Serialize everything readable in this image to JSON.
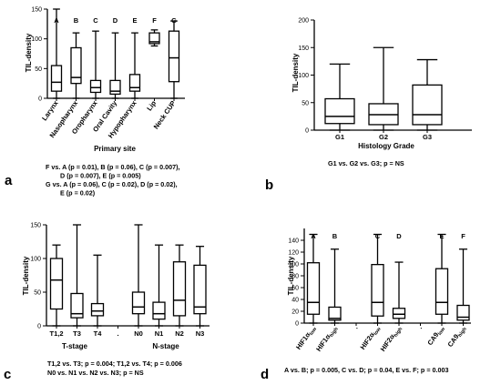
{
  "chart_data": [
    {
      "type": "box",
      "panel_label": "a",
      "ylabel": "TIL-density",
      "xlabel": "Primary site",
      "ylim": [
        0,
        150
      ],
      "yticks": [
        0,
        50,
        100,
        150
      ],
      "categories": [
        "Larynx",
        "Nasopharynx",
        "Oropharynx",
        "Oral Cavity",
        "Hypopharynx",
        "Lip",
        "Neck CUP"
      ],
      "letters": [
        "A",
        "B",
        "C",
        "D",
        "E",
        "F",
        "G"
      ],
      "boxes": [
        {
          "min": 0,
          "q1": 12,
          "median": 27,
          "q3": 55,
          "max": 150
        },
        {
          "min": 0,
          "q1": 25,
          "median": 35,
          "q3": 85,
          "max": 110
        },
        {
          "min": 0,
          "q1": 10,
          "median": 18,
          "q3": 30,
          "max": 113
        },
        {
          "min": 0,
          "q1": 7,
          "median": 12,
          "q3": 30,
          "max": 110
        },
        {
          "min": 0,
          "q1": 12,
          "median": 18,
          "q3": 40,
          "max": 110
        },
        {
          "min": 88,
          "q1": 92,
          "median": 95,
          "q3": 110,
          "max": 115
        },
        {
          "min": 0,
          "q1": 28,
          "median": 68,
          "q3": 113,
          "max": 130
        }
      ],
      "caption": [
        "F vs.  A (p = 0.01), B (p = 0.06), C (p = 0.007),",
        "D (p = 0.007), E (p = 0.005)",
        "G vs.  A (p = 0.06),  C (p = 0.02), D (p = 0.02),",
        "E (p = 0.02)"
      ]
    },
    {
      "type": "box",
      "panel_label": "b",
      "ylabel": "TIL-density",
      "xlabel": "Histology Grade",
      "ylim": [
        0,
        200
      ],
      "yticks": [
        0,
        50,
        100,
        150,
        200
      ],
      "categories": [
        "G1",
        "G2",
        "G3"
      ],
      "boxes": [
        {
          "min": 0,
          "q1": 12,
          "median": 25,
          "q3": 57,
          "max": 120
        },
        {
          "min": 0,
          "q1": 10,
          "median": 28,
          "q3": 48,
          "max": 150
        },
        {
          "min": 0,
          "q1": 10,
          "median": 28,
          "q3": 82,
          "max": 128
        }
      ],
      "caption": [
        "G1 vs. G2 vs. G3; p = NS"
      ]
    },
    {
      "type": "box",
      "panel_label": "c",
      "ylabel": "TIL-density",
      "ylim": [
        0,
        150
      ],
      "yticks": [
        0,
        50,
        100,
        150
      ],
      "categories": [
        "T1,2",
        "T3",
        "T4",
        ".",
        "N0",
        "N1",
        "N2",
        "N3"
      ],
      "groups": [
        "T-stage",
        "N-stage"
      ],
      "boxes": [
        {
          "min": 0,
          "q1": 25,
          "median": 68,
          "q3": 100,
          "max": 120
        },
        {
          "min": 0,
          "q1": 12,
          "median": 18,
          "q3": 48,
          "max": 150
        },
        {
          "min": 0,
          "q1": 15,
          "median": 22,
          "q3": 33,
          "max": 105
        },
        null,
        {
          "min": 0,
          "q1": 18,
          "median": 28,
          "q3": 50,
          "max": 150
        },
        {
          "min": 0,
          "q1": 10,
          "median": 18,
          "q3": 35,
          "max": 120
        },
        {
          "min": 0,
          "q1": 15,
          "median": 38,
          "q3": 95,
          "max": 120
        },
        {
          "min": 0,
          "q1": 18,
          "median": 28,
          "q3": 90,
          "max": 118
        }
      ],
      "caption": [
        "T1,2 vs. T3; p = 0.004;  T1,2 vs. T4; p = 0.006",
        "N0 vs. N1 vs. N2 vs. N3; p = NS"
      ]
    },
    {
      "type": "box",
      "panel_label": "d",
      "ylabel": "TIL-density",
      "ylim": [
        0,
        160
      ],
      "yticks": [
        0,
        20,
        40,
        60,
        80,
        100,
        120,
        140
      ],
      "categories": [
        {
          "base": "HIF1α",
          "sub": "low"
        },
        {
          "base": "HIF1α",
          "sub": "high"
        },
        {
          "base": ".",
          "sub": ""
        },
        {
          "base": "HIF2α",
          "sub": "low"
        },
        {
          "base": "HIF2α",
          "sub": "high"
        },
        {
          "base": ".",
          "sub": ""
        },
        {
          "base": "CA9",
          "sub": "low"
        },
        {
          "base": "CA9",
          "sub": "high"
        }
      ],
      "letters": [
        "A",
        "B",
        "",
        "C",
        "D",
        "",
        "E",
        "F"
      ],
      "boxes": [
        {
          "min": 0,
          "q1": 15,
          "median": 35,
          "q3": 102,
          "max": 150
        },
        {
          "min": 0,
          "q1": 5,
          "median": 8,
          "q3": 27,
          "max": 125
        },
        null,
        {
          "min": 0,
          "q1": 12,
          "median": 35,
          "q3": 99,
          "max": 150
        },
        {
          "min": 0,
          "q1": 8,
          "median": 15,
          "q3": 25,
          "max": 103
        },
        null,
        {
          "min": 0,
          "q1": 15,
          "median": 35,
          "q3": 92,
          "max": 150
        },
        {
          "min": 0,
          "q1": 5,
          "median": 10,
          "q3": 30,
          "max": 125
        }
      ],
      "caption": [
        "A vs. B; p = 0.005, C vs. D; p = 0.04, E vs. F; p = 0.003"
      ]
    }
  ]
}
